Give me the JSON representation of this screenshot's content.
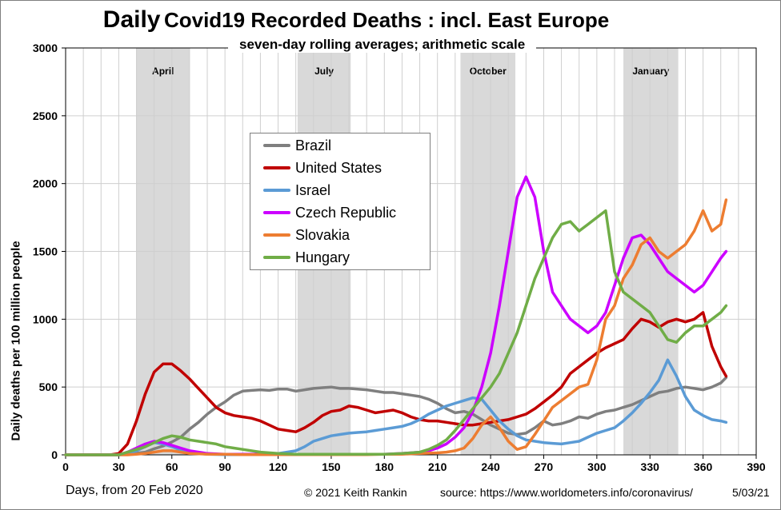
{
  "title": {
    "bold": "Daily",
    "rest": "Covid19 Recorded Deaths : incl. East Europe"
  },
  "subtitle": "seven-day rolling averages; arithmetic scale",
  "ylabel": "Daily deaths per 100 million people",
  "xlabel": "Days, from 20 Feb 2020",
  "credit": "© 2021   Keith  Rankin",
  "source": "source:  https://www.worldometers.info/coronavirus/",
  "date": "5/03/21",
  "chart_data": {
    "type": "line",
    "title": "Daily Covid19 Recorded Deaths : incl. East Europe",
    "subtitle": "seven-day rolling averages; arithmetic scale",
    "xlabel": "Days, from 20 Feb 2020",
    "ylabel": "Daily deaths per 100 million people",
    "xlim": [
      0,
      390
    ],
    "ylim": [
      0,
      3000
    ],
    "xticks": [
      0,
      30,
      60,
      90,
      120,
      150,
      180,
      210,
      240,
      270,
      300,
      330,
      360,
      390
    ],
    "yticks": [
      0,
      500,
      1000,
      1500,
      2000,
      2500,
      3000
    ],
    "grid": true,
    "legend_position": "upper-middle",
    "month_bands": [
      {
        "label": "April",
        "start": 40,
        "end": 70
      },
      {
        "label": "July",
        "start": 131,
        "end": 161
      },
      {
        "label": "October",
        "start": 223,
        "end": 254
      },
      {
        "label": "January",
        "start": 315,
        "end": 346
      }
    ],
    "series": [
      {
        "name": "Brazil",
        "color": "#7f7f7f",
        "x": [
          0,
          25,
          30,
          35,
          40,
          45,
          50,
          55,
          60,
          65,
          70,
          75,
          80,
          85,
          90,
          95,
          100,
          105,
          110,
          115,
          120,
          125,
          130,
          135,
          140,
          145,
          150,
          155,
          160,
          165,
          170,
          175,
          180,
          185,
          190,
          195,
          200,
          205,
          210,
          215,
          220,
          225,
          230,
          235,
          240,
          245,
          250,
          255,
          260,
          265,
          270,
          275,
          280,
          285,
          290,
          295,
          300,
          305,
          310,
          315,
          320,
          325,
          330,
          335,
          340,
          345,
          350,
          355,
          360,
          365,
          370,
          373
        ],
        "y": [
          0,
          0,
          0,
          5,
          12,
          20,
          45,
          65,
          95,
          130,
          190,
          240,
          300,
          350,
          390,
          440,
          470,
          475,
          480,
          475,
          485,
          485,
          470,
          480,
          490,
          495,
          500,
          490,
          490,
          485,
          480,
          470,
          460,
          460,
          450,
          440,
          430,
          410,
          380,
          340,
          310,
          320,
          300,
          260,
          220,
          190,
          160,
          150,
          160,
          200,
          250,
          220,
          230,
          250,
          280,
          270,
          300,
          320,
          330,
          350,
          370,
          400,
          430,
          460,
          470,
          490,
          500,
          490,
          480,
          500,
          530,
          570
        ]
      },
      {
        "name": "United States",
        "color": "#c00000",
        "x": [
          0,
          25,
          30,
          35,
          40,
          45,
          50,
          55,
          60,
          65,
          70,
          75,
          80,
          85,
          90,
          95,
          100,
          105,
          110,
          115,
          120,
          125,
          130,
          135,
          140,
          145,
          150,
          155,
          160,
          165,
          170,
          175,
          180,
          185,
          190,
          195,
          200,
          205,
          210,
          215,
          220,
          225,
          230,
          235,
          240,
          245,
          250,
          255,
          260,
          265,
          270,
          275,
          280,
          285,
          290,
          295,
          300,
          305,
          310,
          315,
          320,
          325,
          330,
          335,
          340,
          345,
          350,
          355,
          360,
          365,
          370,
          373
        ],
        "y": [
          0,
          0,
          10,
          80,
          250,
          450,
          610,
          670,
          670,
          620,
          560,
          490,
          420,
          350,
          310,
          290,
          280,
          270,
          250,
          220,
          190,
          180,
          170,
          200,
          240,
          290,
          320,
          330,
          360,
          350,
          330,
          310,
          320,
          330,
          310,
          280,
          260,
          250,
          250,
          240,
          230,
          220,
          220,
          230,
          240,
          250,
          260,
          280,
          300,
          340,
          390,
          440,
          500,
          600,
          650,
          700,
          750,
          790,
          820,
          850,
          930,
          1000,
          980,
          940,
          980,
          1000,
          980,
          1000,
          1050,
          800,
          650,
          580
        ]
      },
      {
        "name": "Israel",
        "color": "#5b9bd5",
        "x": [
          0,
          30,
          35,
          40,
          45,
          50,
          55,
          60,
          65,
          70,
          75,
          80,
          85,
          90,
          100,
          110,
          120,
          130,
          135,
          140,
          145,
          150,
          155,
          160,
          165,
          170,
          175,
          180,
          185,
          190,
          195,
          200,
          205,
          210,
          215,
          220,
          225,
          230,
          235,
          240,
          245,
          250,
          255,
          260,
          265,
          270,
          275,
          280,
          285,
          290,
          295,
          300,
          305,
          310,
          315,
          320,
          325,
          330,
          335,
          340,
          345,
          350,
          355,
          360,
          365,
          370,
          373
        ],
        "y": [
          0,
          0,
          10,
          30,
          60,
          90,
          80,
          60,
          35,
          20,
          10,
          5,
          3,
          2,
          2,
          5,
          10,
          30,
          60,
          100,
          120,
          140,
          150,
          160,
          165,
          170,
          180,
          190,
          200,
          210,
          230,
          260,
          300,
          330,
          360,
          380,
          400,
          420,
          410,
          330,
          250,
          190,
          140,
          110,
          100,
          90,
          85,
          80,
          90,
          100,
          130,
          160,
          180,
          200,
          250,
          310,
          380,
          460,
          550,
          700,
          580,
          430,
          330,
          290,
          260,
          250,
          240
        ]
      },
      {
        "name": "Czech Republic",
        "color": "#cc00ff",
        "x": [
          0,
          30,
          35,
          40,
          45,
          50,
          55,
          60,
          65,
          70,
          80,
          90,
          100,
          110,
          120,
          130,
          140,
          150,
          160,
          170,
          180,
          190,
          200,
          205,
          210,
          215,
          220,
          225,
          230,
          235,
          240,
          245,
          250,
          255,
          260,
          265,
          270,
          275,
          280,
          285,
          290,
          295,
          300,
          305,
          310,
          315,
          320,
          325,
          330,
          335,
          340,
          345,
          350,
          355,
          360,
          365,
          370,
          373
        ],
        "y": [
          0,
          0,
          20,
          50,
          80,
          100,
          90,
          70,
          50,
          30,
          10,
          5,
          5,
          5,
          5,
          5,
          5,
          5,
          5,
          5,
          5,
          10,
          20,
          30,
          50,
          80,
          130,
          200,
          320,
          500,
          750,
          1100,
          1500,
          1900,
          2050,
          1900,
          1500,
          1200,
          1100,
          1000,
          950,
          900,
          950,
          1050,
          1250,
          1450,
          1600,
          1620,
          1550,
          1450,
          1350,
          1300,
          1250,
          1200,
          1250,
          1350,
          1450,
          1500
        ]
      },
      {
        "name": "Slovakia",
        "color": "#ed7d31",
        "x": [
          0,
          35,
          40,
          45,
          50,
          55,
          60,
          65,
          70,
          80,
          90,
          100,
          110,
          120,
          130,
          140,
          150,
          160,
          170,
          180,
          190,
          200,
          210,
          215,
          220,
          225,
          230,
          235,
          240,
          245,
          250,
          255,
          260,
          265,
          270,
          275,
          280,
          285,
          290,
          295,
          300,
          305,
          310,
          315,
          320,
          325,
          330,
          335,
          340,
          345,
          350,
          355,
          360,
          365,
          370,
          373
        ],
        "y": [
          0,
          0,
          5,
          10,
          20,
          30,
          30,
          20,
          10,
          5,
          5,
          2,
          2,
          2,
          2,
          2,
          2,
          2,
          2,
          5,
          5,
          10,
          15,
          20,
          30,
          50,
          120,
          220,
          280,
          200,
          100,
          40,
          60,
          150,
          250,
          350,
          400,
          450,
          500,
          520,
          700,
          1000,
          1100,
          1300,
          1400,
          1550,
          1600,
          1500,
          1450,
          1500,
          1550,
          1650,
          1800,
          1650,
          1700,
          1880
        ]
      },
      {
        "name": "Hungary",
        "color": "#70ad47",
        "x": [
          0,
          30,
          35,
          40,
          45,
          50,
          55,
          60,
          65,
          70,
          75,
          80,
          85,
          90,
          95,
          100,
          110,
          120,
          130,
          140,
          150,
          160,
          170,
          180,
          190,
          200,
          205,
          210,
          215,
          220,
          225,
          230,
          235,
          240,
          245,
          250,
          255,
          260,
          265,
          270,
          275,
          280,
          285,
          290,
          295,
          300,
          305,
          310,
          315,
          320,
          325,
          330,
          335,
          340,
          345,
          350,
          355,
          360,
          365,
          370,
          373
        ],
        "y": [
          0,
          0,
          20,
          40,
          60,
          90,
          120,
          140,
          130,
          110,
          100,
          90,
          80,
          60,
          50,
          40,
          20,
          10,
          5,
          5,
          5,
          5,
          5,
          5,
          10,
          20,
          40,
          70,
          110,
          180,
          260,
          340,
          420,
          500,
          600,
          750,
          900,
          1100,
          1300,
          1450,
          1600,
          1700,
          1720,
          1650,
          1700,
          1750,
          1800,
          1350,
          1200,
          1150,
          1100,
          1050,
          950,
          850,
          830,
          900,
          950,
          950,
          1000,
          1050,
          1100
        ]
      }
    ]
  }
}
